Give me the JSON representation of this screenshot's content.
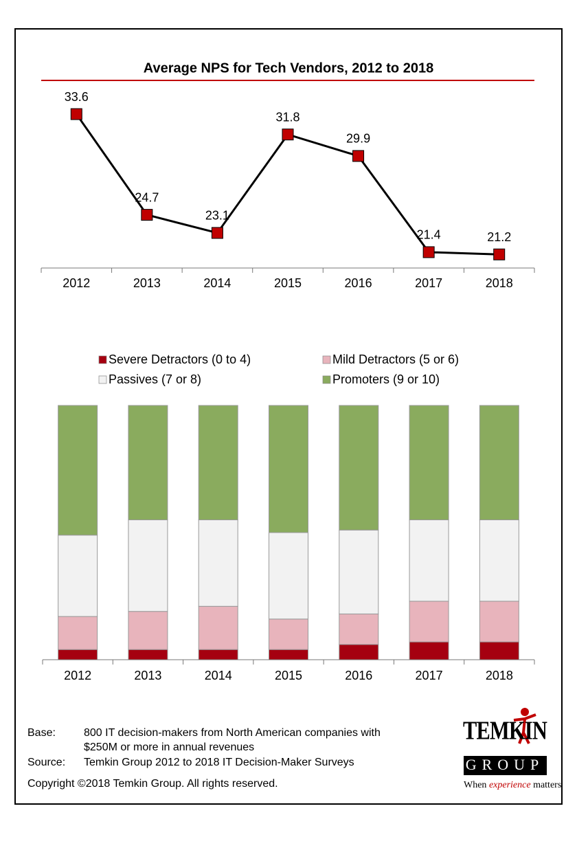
{
  "chart_data": [
    {
      "type": "line",
      "title": "Average NPS for Tech Vendors, 2012 to 2018",
      "categories": [
        "2012",
        "2013",
        "2014",
        "2015",
        "2016",
        "2017",
        "2018"
      ],
      "values": [
        33.6,
        24.7,
        23.1,
        31.8,
        29.9,
        21.4,
        21.2
      ],
      "color": "#000000",
      "marker_color": "#c00000",
      "ylim": [
        20,
        35
      ]
    },
    {
      "type": "stacked_bar",
      "categories": [
        "2012",
        "2013",
        "2014",
        "2015",
        "2016",
        "2017",
        "2018"
      ],
      "series": [
        {
          "name": "Severe Detractors (0 to 4)",
          "color": "#a50010",
          "values": [
            4,
            4,
            4,
            4,
            6,
            7,
            7
          ]
        },
        {
          "name": "Mild Detractors (5 or 6)",
          "color": "#e8b4bc",
          "values": [
            13,
            15,
            17,
            12,
            12,
            16,
            16
          ]
        },
        {
          "name": "Passives (7 or 8)",
          "color": "#f2f2f2",
          "values": [
            32,
            36,
            34,
            34,
            33,
            32,
            32
          ]
        },
        {
          "name": "Promoters (9 or 10)",
          "color": "#8aab5e",
          "values": [
            51,
            45,
            45,
            50,
            49,
            45,
            45
          ]
        }
      ],
      "ylim": [
        0,
        100
      ]
    }
  ],
  "footer": {
    "base_label": "Base:",
    "base_lines": [
      "800 IT decision-makers from North American companies with",
      "$250M or more in annual revenues"
    ],
    "source_label": "Source:",
    "source": "Temkin Group 2012 to 2018 IT Decision-Maker Surveys",
    "copyright": "Copyright ©2018 Temkin Group. All rights reserved."
  },
  "logo": {
    "name": "TEMKIN",
    "group": "GROUP",
    "tagline": [
      "When",
      "experience",
      "matters"
    ]
  }
}
